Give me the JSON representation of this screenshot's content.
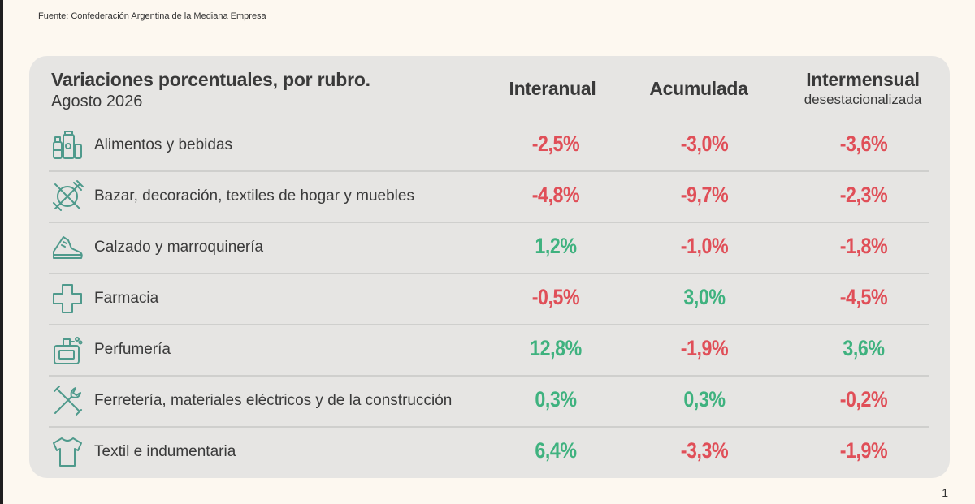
{
  "source": "Fuente: Confederación Argentina de la Mediana Empresa",
  "page_number": "1",
  "table": {
    "title": "Variaciones porcentuales, por rubro.",
    "subtitle": "Agosto 2026",
    "columns": [
      {
        "label": "Interanual",
        "sub": ""
      },
      {
        "label": "Acumulada",
        "sub": ""
      },
      {
        "label": "Intermensual",
        "sub": "desestacionalizada"
      }
    ],
    "rows": [
      {
        "icon": "food-drinks-icon",
        "label": "Alimentos y bebidas",
        "values": [
          "-2,5%",
          "-3,0%",
          "-3,6%"
        ],
        "signs": [
          "neg",
          "neg",
          "neg"
        ]
      },
      {
        "icon": "bazar-utensils-icon",
        "label": "Bazar, decoración, textiles de hogar y muebles",
        "values": [
          "-4,8%",
          "-9,7%",
          "-2,3%"
        ],
        "signs": [
          "neg",
          "neg",
          "neg"
        ]
      },
      {
        "icon": "shoe-icon",
        "label": "Calzado y marroquinería",
        "values": [
          "1,2%",
          "-1,0%",
          "-1,8%"
        ],
        "signs": [
          "pos",
          "neg",
          "neg"
        ]
      },
      {
        "icon": "pharmacy-cross-icon",
        "label": "Farmacia",
        "values": [
          "-0,5%",
          "3,0%",
          "-4,5%"
        ],
        "signs": [
          "neg",
          "pos",
          "neg"
        ]
      },
      {
        "icon": "perfume-icon",
        "label": "Perfumería",
        "values": [
          "12,8%",
          "-1,9%",
          "3,6%"
        ],
        "signs": [
          "pos",
          "neg",
          "pos"
        ]
      },
      {
        "icon": "tools-icon",
        "label": "Ferretería, materiales eléctricos y de la construcción",
        "values": [
          "0,3%",
          "0,3%",
          "-0,2%"
        ],
        "signs": [
          "pos",
          "pos",
          "neg"
        ]
      },
      {
        "icon": "tshirt-icon",
        "label": "Textil e indumentaria",
        "values": [
          "6,4%",
          "-3,3%",
          "-1,9%"
        ],
        "signs": [
          "pos",
          "neg",
          "neg"
        ]
      }
    ]
  },
  "colors": {
    "negative": "#e04f58",
    "positive": "#3fb27f",
    "icon": "#4f9a8c",
    "card": "#e6e5e3",
    "page": "#fdf8f0"
  }
}
